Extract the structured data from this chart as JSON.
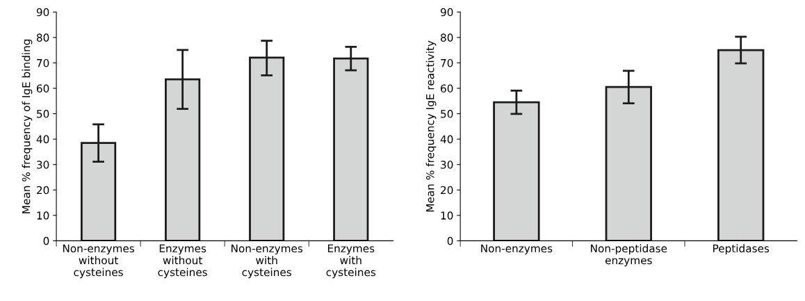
{
  "chart_data": [
    {
      "type": "bar",
      "ylabel": "Mean % frequency of IgE binding",
      "categories": [
        "Non-enzymes\nwithout\ncysteines",
        "Enzymes\nwithout\ncysteines",
        "Non-enzymes\nwith\ncysteines",
        "Enzymes\nwith\ncysteines"
      ],
      "values": [
        38.5,
        63.5,
        72.1,
        71.7
      ],
      "errors": [
        [
          31.1,
          45.8
        ],
        [
          51.9,
          75.1
        ],
        [
          65.1,
          78.7
        ],
        [
          67.1,
          76.3
        ]
      ],
      "color": "#d4d6d5",
      "ylim": [
        0,
        90
      ],
      "yticks": [
        0,
        10,
        20,
        30,
        40,
        50,
        60,
        70,
        80,
        90
      ],
      "grid": false,
      "legend": false
    },
    {
      "type": "bar",
      "ylabel": "Mean % frequency IgE reactivity",
      "categories": [
        "Non-enzymes",
        "Non-peptidase\nenzymes",
        "Peptidases"
      ],
      "values": [
        54.5,
        60.5,
        75.0
      ],
      "errors": [
        [
          49.9,
          59.1
        ],
        [
          54.1,
          66.9
        ],
        [
          69.8,
          80.3
        ]
      ],
      "color": "#d4d6d5",
      "ylim": [
        0,
        90
      ],
      "yticks": [
        0,
        10,
        20,
        30,
        40,
        50,
        60,
        70,
        80,
        90
      ],
      "grid": false,
      "legend": false
    }
  ]
}
